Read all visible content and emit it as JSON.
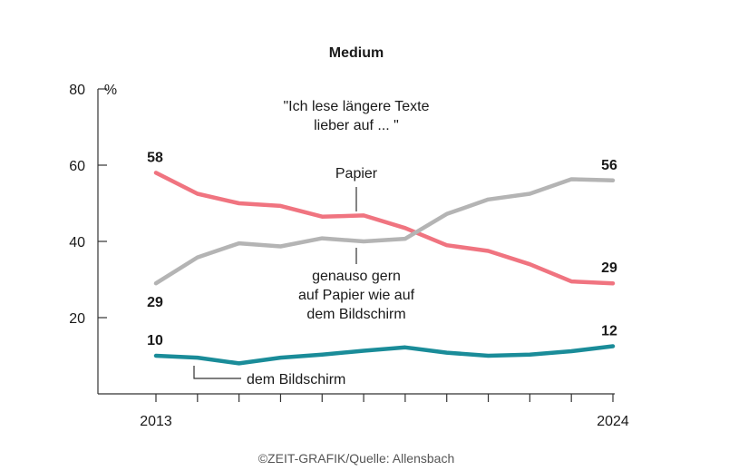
{
  "chart_data": {
    "type": "line",
    "title": "Medium",
    "source": "©ZEIT-GRAFIK/Quelle: Allensbach",
    "y_unit": "%",
    "ylim": [
      0,
      80
    ],
    "yticks": [
      20,
      40,
      60,
      80
    ],
    "x": [
      2013,
      2014,
      2015,
      2016,
      2017,
      2018,
      2019,
      2020,
      2021,
      2022,
      2023,
      2024
    ],
    "x_tick_labels": [
      "2013",
      "2024"
    ],
    "annotation": "\"Ich lese längere Texte lieber auf ... \"",
    "grid": false,
    "series": [
      {
        "name": "Papier",
        "color": "#f07480",
        "values": [
          58,
          52.5,
          50,
          49.3,
          46.5,
          46.8,
          43.5,
          39,
          37.5,
          34,
          29.5,
          29
        ],
        "start_label": "58",
        "end_label": "29"
      },
      {
        "name": "genauso gern auf Papier wie auf dem Bildschirm",
        "color": "#b4b4b4",
        "values": [
          29,
          35.8,
          39.5,
          38.7,
          40.8,
          40,
          40.7,
          47.2,
          51,
          52.5,
          56.3,
          56
        ],
        "start_label": "29",
        "end_label": "56"
      },
      {
        "name": "dem Bildschirm",
        "color": "#1a8c99",
        "values": [
          10,
          9.5,
          8,
          9.5,
          10.3,
          11.3,
          12.2,
          10.8,
          10,
          10.3,
          11.2,
          12.5
        ],
        "start_label": "10",
        "end_label": "12"
      }
    ],
    "series_labels": {
      "papier": [
        "Papier"
      ],
      "genauso": [
        "genauso gern",
        "auf Papier wie auf",
        "dem Bildschirm"
      ],
      "bildschirm": [
        "dem Bildschirm"
      ]
    },
    "annotation_lines": [
      "\"Ich lese längere Texte",
      "lieber auf ... \""
    ]
  }
}
